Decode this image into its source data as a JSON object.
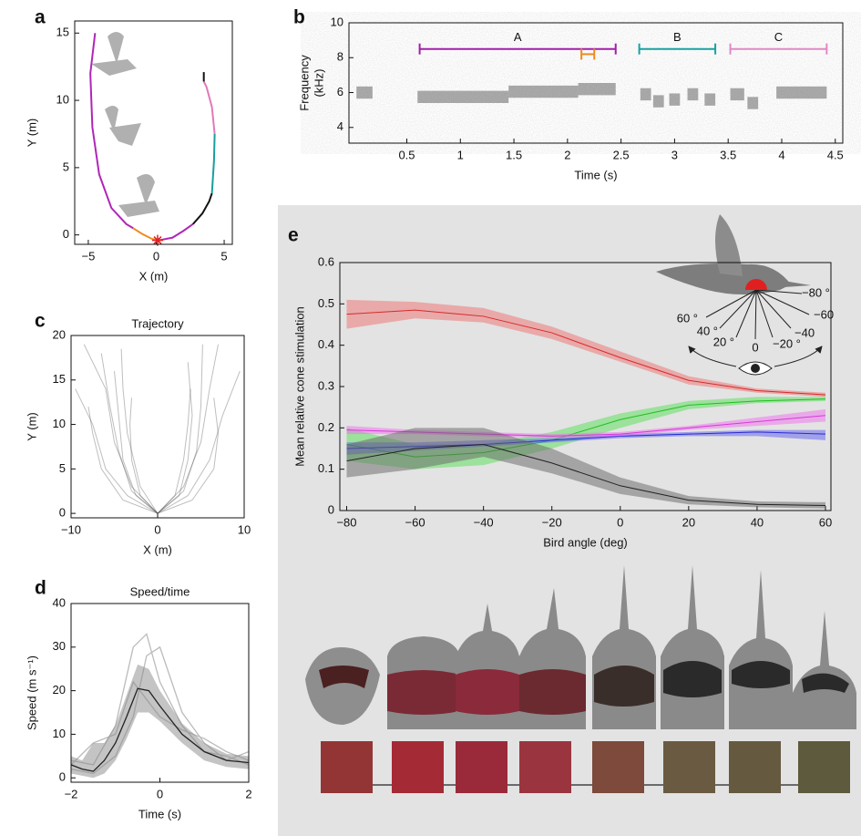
{
  "chart_data": [
    {
      "type": "line",
      "panel": "a",
      "x_label": "X (m)",
      "y_label": "Y (m)",
      "xlim": [
        -6,
        5.6
      ],
      "ylim": [
        -0.7,
        15.9
      ],
      "xticks": [
        {
          "value": -5,
          "label": "−5"
        },
        0,
        5
      ],
      "yticks": [
        0,
        5,
        10,
        15
      ],
      "series": [
        {
          "color": "#b026b8",
          "x": [
            -4.5,
            -4.85,
            -4.7,
            -4.2,
            -3.3,
            -2.2,
            -1.7
          ],
          "values": [
            15,
            12,
            8,
            4.5,
            2,
            0.8,
            0.5
          ]
        },
        {
          "color": "#f08a1c",
          "x": [
            -1.7,
            -1.0,
            -0.3,
            0.2
          ],
          "values": [
            0.5,
            0.05,
            -0.3,
            -0.4
          ]
        },
        {
          "color": "#b026b8",
          "x": [
            0.2,
            1.2,
            2.0,
            2.7
          ],
          "values": [
            -0.4,
            -0.2,
            0.3,
            0.8
          ]
        },
        {
          "color": "#111111",
          "x": [
            2.7,
            3.4,
            3.9,
            4.1
          ],
          "values": [
            0.8,
            1.6,
            2.5,
            3.1
          ]
        },
        {
          "color": "#1a9e9e",
          "x": [
            4.1,
            4.25,
            4.3
          ],
          "values": [
            3.1,
            5.5,
            7.5
          ]
        },
        {
          "color": "#e07ab8",
          "x": [
            4.3,
            4.1,
            3.7,
            3.5
          ],
          "values": [
            7.5,
            9.5,
            11,
            11.4
          ]
        },
        {
          "color": "#111111",
          "x": [
            3.5,
            3.5
          ],
          "values": [
            11.4,
            12.1
          ]
        }
      ],
      "marker": {
        "x": 0.1,
        "y": -0.4,
        "color": "#e02020"
      }
    },
    {
      "type": "spectrogram",
      "panel": "b",
      "x_label": "Time (s)",
      "y_label": [
        "Frequency",
        "(kHz)"
      ],
      "xlim": [
        -0.04,
        4.57
      ],
      "ylim": [
        3.1,
        10
      ],
      "xticks": [
        0.5,
        1,
        1.5,
        2,
        2.5,
        3,
        3.5,
        4,
        4.5
      ],
      "yticks": [
        4,
        6,
        8,
        10
      ],
      "syllables": [
        [
          0.03,
          0.18,
          6.0
        ],
        [
          0.6,
          1.45,
          5.75
        ],
        [
          1.45,
          2.1,
          6.05
        ],
        [
          2.1,
          2.45,
          6.2
        ],
        [
          2.68,
          2.78,
          5.9
        ],
        [
          2.8,
          2.9,
          5.5
        ],
        [
          2.95,
          3.05,
          5.6
        ],
        [
          3.12,
          3.22,
          5.9
        ],
        [
          3.28,
          3.38,
          5.6
        ],
        [
          3.52,
          3.65,
          5.9
        ],
        [
          3.68,
          3.78,
          5.4
        ],
        [
          3.95,
          4.42,
          6.0
        ]
      ],
      "brackets": [
        {
          "label": "A",
          "x": [
            0.62,
            2.45
          ],
          "y": 8.5,
          "color": "#a020a8"
        },
        {
          "label": "B",
          "x": [
            2.67,
            3.38
          ],
          "y": 8.5,
          "color": "#1aa0a0"
        },
        {
          "label": "C",
          "x": [
            3.52,
            4.42
          ],
          "y": 8.5,
          "color": "#e08ac4"
        },
        {
          "x": [
            2.13,
            2.25
          ],
          "y": 8.2,
          "color": "#f08a1c"
        }
      ]
    },
    {
      "type": "line",
      "panel": "c",
      "title": "Trajectory",
      "x_label": "X (m)",
      "y_label": "Y (m)",
      "xlim": [
        -10,
        10
      ],
      "ylim": [
        -0.5,
        20
      ],
      "color": "#444444",
      "xticks": [
        {
          "value": -10,
          "label": "−10"
        },
        0,
        10
      ],
      "yticks": [
        0,
        5,
        10,
        15,
        20
      ],
      "series": [
        {
          "x": [
            0,
            -3,
            -5,
            -6,
            -8.5
          ],
          "values": [
            0,
            3,
            8,
            14,
            19
          ]
        },
        {
          "x": [
            0,
            -2.5,
            -4,
            -4.5,
            -5
          ],
          "values": [
            0,
            2,
            6,
            11,
            16
          ]
        },
        {
          "x": [
            0,
            -3.5,
            -6,
            -7.5,
            -9.5
          ],
          "values": [
            0,
            2,
            5,
            10,
            14
          ]
        },
        {
          "x": [
            0,
            -2,
            -3,
            -3.2,
            -3
          ],
          "values": [
            0,
            2,
            6,
            10,
            13
          ]
        },
        {
          "x": [
            0,
            -3,
            -4.5,
            -5.5,
            -6.5
          ],
          "values": [
            0,
            2.5,
            7,
            12,
            18
          ]
        },
        {
          "x": [
            0,
            -4,
            -6.5,
            -7.5,
            -8
          ],
          "values": [
            0,
            1.5,
            5,
            9,
            12
          ]
        },
        {
          "x": [
            0,
            -2,
            -3.5,
            -4,
            -4.2
          ],
          "values": [
            0,
            3,
            9,
            14,
            18.5
          ]
        },
        {
          "x": [
            0,
            3,
            5,
            6,
            7
          ],
          "values": [
            0,
            3,
            8,
            14,
            19
          ]
        },
        {
          "x": [
            0,
            2.5,
            3.5,
            4,
            3.5
          ],
          "values": [
            0,
            2,
            6,
            11,
            17
          ]
        },
        {
          "x": [
            0,
            3.5,
            6,
            7.5,
            9.5
          ],
          "values": [
            0,
            2,
            6,
            11,
            16
          ]
        },
        {
          "x": [
            0,
            2,
            3,
            3.5,
            3.8
          ],
          "values": [
            0,
            2,
            6,
            10,
            14
          ]
        },
        {
          "x": [
            0,
            3,
            4.5,
            5,
            5.2
          ],
          "values": [
            0,
            2.5,
            7,
            12,
            19
          ]
        },
        {
          "x": [
            0,
            4,
            6.5,
            7,
            6.5
          ],
          "values": [
            0,
            1.5,
            5,
            9,
            13
          ]
        }
      ]
    },
    {
      "type": "line",
      "panel": "d",
      "title": "Speed/time",
      "x_label": "Time (s)",
      "y_label": "Speed (m s⁻¹)",
      "xlim": [
        -2,
        2
      ],
      "ylim": [
        -1,
        40
      ],
      "xticks": [
        {
          "value": -2,
          "label": "−2"
        },
        0,
        2
      ],
      "yticks": [
        0,
        10,
        20,
        30,
        40
      ],
      "series": [
        {
          "color": "#bbbbbb",
          "x": [
            -2,
            -1.5,
            -1,
            -0.6,
            -0.3,
            0,
            0.5,
            1,
            1.5,
            2
          ],
          "values": [
            4,
            3,
            12,
            30,
            33,
            22,
            12,
            6,
            5,
            3
          ]
        },
        {
          "color": "#bbbbbb",
          "x": [
            -2,
            -1.5,
            -1,
            -0.6,
            -0.3,
            0,
            0.5,
            1,
            1.5,
            2
          ],
          "values": [
            2,
            1,
            5,
            14,
            28,
            30,
            15,
            8,
            4,
            6
          ]
        },
        {
          "color": "#bbbbbb",
          "x": [
            -2,
            -1.5,
            -1,
            -0.6,
            -0.3,
            0,
            0.5,
            1,
            1.5,
            2
          ],
          "values": [
            3,
            8,
            10,
            22,
            18,
            14,
            11,
            9,
            6,
            4
          ]
        },
        {
          "color": "#222222",
          "band": "#8a8a8a",
          "x": [
            -2,
            -1.75,
            -1.5,
            -1.25,
            -1,
            -0.75,
            -0.5,
            -0.25,
            0,
            0.5,
            1,
            1.5,
            2
          ],
          "values": [
            3,
            2,
            1.5,
            4,
            8,
            14,
            20.5,
            20,
            16.5,
            10,
            6,
            4,
            3.5
          ],
          "lower": [
            1,
            0.5,
            0,
            1,
            4,
            9,
            15,
            15,
            13,
            8,
            4,
            2.5,
            2
          ],
          "upper": [
            5,
            4,
            8,
            8,
            12,
            19,
            26,
            25,
            20,
            12.5,
            8,
            5.5,
            5
          ]
        }
      ]
    },
    {
      "type": "line",
      "panel": "e",
      "x_label": "Bird angle (deg)",
      "y_label": "Mean relative cone stimulation",
      "xlim": [
        -82,
        61.6
      ],
      "ylim": [
        0,
        0.6
      ],
      "xticks": [
        {
          "value": -80,
          "label": "−80"
        },
        {
          "value": -60,
          "label": "−60"
        },
        {
          "value": -40,
          "label": "−40"
        },
        {
          "value": -20,
          "label": "−20"
        },
        0,
        20,
        40,
        60
      ],
      "yticks": [
        0,
        0.1,
        0.2,
        0.3,
        0.4,
        0.5,
        0.6
      ],
      "series": [
        {
          "color": "#d62a2a",
          "band": "#f07070",
          "x": [
            -80,
            -60,
            -40,
            -20,
            0,
            20,
            40,
            60
          ],
          "values": [
            0.475,
            0.485,
            0.47,
            0.43,
            0.37,
            0.315,
            0.29,
            0.28
          ],
          "lower": [
            0.44,
            0.465,
            0.455,
            0.415,
            0.36,
            0.305,
            0.285,
            0.275
          ],
          "upper": [
            0.51,
            0.505,
            0.49,
            0.445,
            0.385,
            0.325,
            0.295,
            0.285
          ]
        },
        {
          "color": "#1fbf1f",
          "band": "#55e055",
          "x": [
            -80,
            -60,
            -40,
            -20,
            0,
            20,
            40,
            60
          ],
          "values": [
            0.16,
            0.13,
            0.14,
            0.17,
            0.22,
            0.255,
            0.265,
            0.27
          ],
          "lower": [
            0.12,
            0.1,
            0.11,
            0.15,
            0.2,
            0.245,
            0.26,
            0.265
          ],
          "upper": [
            0.2,
            0.16,
            0.16,
            0.19,
            0.235,
            0.265,
            0.275,
            0.275
          ]
        },
        {
          "color": "#2a2ad6",
          "band": "#6060f0",
          "x": [
            -80,
            -60,
            -40,
            -20,
            0,
            20,
            40,
            60
          ],
          "values": [
            0.15,
            0.155,
            0.16,
            0.17,
            0.18,
            0.185,
            0.19,
            0.185
          ],
          "lower": [
            0.135,
            0.145,
            0.155,
            0.165,
            0.175,
            0.18,
            0.18,
            0.17
          ],
          "upper": [
            0.165,
            0.165,
            0.17,
            0.175,
            0.185,
            0.19,
            0.195,
            0.195
          ]
        },
        {
          "color": "#d63ad6",
          "band": "#f070f0",
          "x": [
            -80,
            -60,
            -40,
            -20,
            0,
            20,
            40,
            60
          ],
          "values": [
            0.195,
            0.19,
            0.185,
            0.18,
            0.185,
            0.2,
            0.215,
            0.23
          ],
          "lower": [
            0.185,
            0.185,
            0.18,
            0.175,
            0.18,
            0.195,
            0.205,
            0.215
          ],
          "upper": [
            0.205,
            0.195,
            0.19,
            0.185,
            0.19,
            0.205,
            0.225,
            0.245
          ]
        },
        {
          "color": "#222222",
          "band": "#666666",
          "x": [
            -80,
            -60,
            -40,
            -20,
            0,
            20,
            40,
            60
          ],
          "values": [
            0.12,
            0.15,
            0.16,
            0.115,
            0.06,
            0.025,
            0.015,
            0.012
          ],
          "lower": [
            0.08,
            0.1,
            0.13,
            0.09,
            0.04,
            0.015,
            0.008,
            0.005
          ],
          "upper": [
            0.16,
            0.2,
            0.2,
            0.15,
            0.08,
            0.035,
            0.022,
            0.02
          ]
        }
      ],
      "inset_labels": [
        "−80 °",
        "60 °",
        "−60",
        "40 °",
        "−40",
        "20 °",
        "−20 °",
        "0"
      ],
      "swatches": [
        "#933535",
        "#a42a35",
        "#9a2a3a",
        "#9a3540",
        "#7d4a3c",
        "#6b5a42",
        "#655a40",
        "#5e5a3d"
      ]
    }
  ]
}
